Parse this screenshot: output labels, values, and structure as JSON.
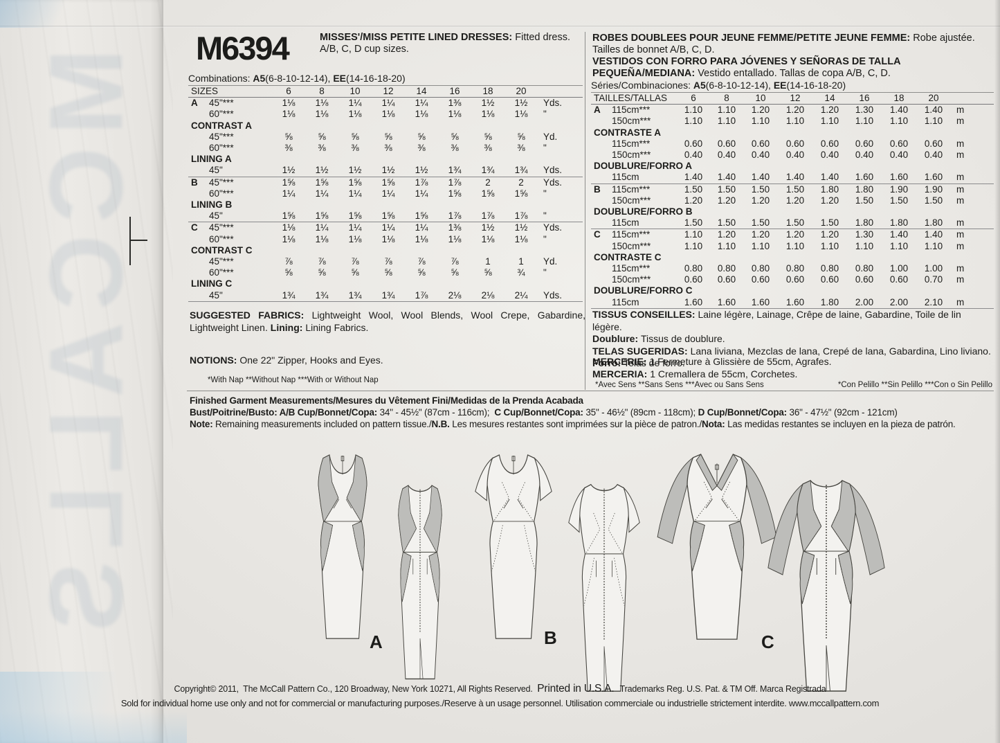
{
  "colors": {
    "paper": "#e9e7e3",
    "ink": "#1c1c1a",
    "contrast_gray": "#bdbdba",
    "rule_gray": "#8d8d8b",
    "ghost_blue": "#7d96af"
  },
  "watermark_text": "MCCALLS",
  "header": {
    "pattern_number": "M6394",
    "title_en": [
      {
        "t": "MISSES'/MISS PETITE LINED DRESSES: ",
        "b": 1
      },
      {
        "t": "Fitted dress. A/B, C, D cup sizes."
      }
    ],
    "title_fr": [
      {
        "t": "ROBES DOUBLEES POUR JEUNE FEMME/PETITE JEUNE FEMME: ",
        "b": 1
      },
      {
        "t": "Robe ajustée. Tailles de bonnet A/B, C, D."
      }
    ],
    "title_es": [
      {
        "t": "VESTIDOS CON FORRO PARA JÓVENES Y SEÑORAS DE TALLA PEQUEÑA/MEDIANA: ",
        "b": 1
      },
      {
        "t": "Vestido entallado. Tallas de copa A/B, C, D."
      }
    ]
  },
  "combinations_en": [
    {
      "t": "Combinations: "
    },
    {
      "t": "A5",
      "b": 1
    },
    {
      "t": "(6-8-10-12-14), "
    },
    {
      "t": "EE",
      "b": 1
    },
    {
      "t": "(14-16-18-20)"
    }
  ],
  "combinations_intl": [
    {
      "t": "Séries/Combinaciones: "
    },
    {
      "t": "A5",
      "b": 1
    },
    {
      "t": "(6-8-10-12-14), "
    },
    {
      "t": "EE",
      "b": 1
    },
    {
      "t": "(14-16-18-20)"
    }
  ],
  "left_table": {
    "cols": [
      121,
      48,
      48,
      48,
      48,
      48,
      48,
      48,
      48,
      65
    ],
    "header": [
      "SIZES",
      "6",
      "8",
      "10",
      "12",
      "14",
      "16",
      "18",
      "20",
      ""
    ],
    "rows": [
      {
        "ltr": "A",
        "l": "45\"***",
        "v": [
          "1⅛",
          "1⅛",
          "1¼",
          "1¼",
          "1¼",
          "1⅜",
          "1½",
          "1½"
        ],
        "u": "Yds."
      },
      {
        "l": "60\"***",
        "v": [
          "1⅛",
          "1⅛",
          "1⅛",
          "1⅛",
          "1⅛",
          "1⅛",
          "1⅛",
          "1⅛"
        ],
        "u": "\""
      },
      {
        "sec": "CONTRAST A"
      },
      {
        "l": "45\"***",
        "v": [
          "⅝",
          "⅝",
          "⅝",
          "⅝",
          "⅝",
          "⅝",
          "⅝",
          "⅝"
        ],
        "u": "Yd."
      },
      {
        "l": "60\"***",
        "v": [
          "⅜",
          "⅜",
          "⅜",
          "⅜",
          "⅜",
          "⅜",
          "⅜",
          "⅜"
        ],
        "u": "\""
      },
      {
        "sec": "LINING A"
      },
      {
        "l": "45\"",
        "v": [
          "1½",
          "1½",
          "1½",
          "1½",
          "1½",
          "1¾",
          "1¾",
          "1¾"
        ],
        "u": "Yds."
      },
      {
        "ltr": "B",
        "l": "45\"***",
        "v": [
          "1⅝",
          "1⅝",
          "1⅝",
          "1⅝",
          "1⅞",
          "1⅞",
          "2",
          "2"
        ],
        "u": "Yds.",
        "ra": 1
      },
      {
        "l": "60\"***",
        "v": [
          "1¼",
          "1¼",
          "1¼",
          "1¼",
          "1¼",
          "1⅝",
          "1⅝",
          "1⅝"
        ],
        "u": "\""
      },
      {
        "sec": "LINING B"
      },
      {
        "l": "45\"",
        "v": [
          "1⅝",
          "1⅝",
          "1⅝",
          "1⅝",
          "1⅝",
          "1⅞",
          "1⅞",
          "1⅞"
        ],
        "u": "\""
      },
      {
        "ltr": "C",
        "l": "45\"***",
        "v": [
          "1⅛",
          "1¼",
          "1¼",
          "1¼",
          "1¼",
          "1⅜",
          "1½",
          "1½"
        ],
        "u": "Yds.",
        "ra": 1
      },
      {
        "l": "60\"***",
        "v": [
          "1⅛",
          "1⅛",
          "1⅛",
          "1⅛",
          "1⅛",
          "1⅛",
          "1⅛",
          "1⅛"
        ],
        "u": "\""
      },
      {
        "sec": "CONTRAST C"
      },
      {
        "l": "45\"***",
        "v": [
          "⅞",
          "⅞",
          "⅞",
          "⅞",
          "⅞",
          "⅞",
          "1",
          "1"
        ],
        "u": "Yd."
      },
      {
        "l": "60\"***",
        "v": [
          "⅝",
          "⅝",
          "⅝",
          "⅝",
          "⅝",
          "⅝",
          "⅝",
          "¾"
        ],
        "u": "\""
      },
      {
        "sec": "LINING C"
      },
      {
        "l": "45\"",
        "v": [
          "1¾",
          "1¾",
          "1¾",
          "1¾",
          "1⅞",
          "2⅛",
          "2⅛",
          "2¼"
        ],
        "u": "Yds.",
        "rb": 1
      }
    ]
  },
  "right_table": {
    "cols": [
      124,
      48,
      48,
      50,
      50,
      50,
      50,
      50,
      50,
      62
    ],
    "header": [
      "TAILLES/TALLAS",
      "6",
      "8",
      "10",
      "12",
      "14",
      "16",
      "18",
      "20",
      ""
    ],
    "rows": [
      {
        "ltr": "A",
        "l": "115cm***",
        "v": [
          "1.10",
          "1.10",
          "1.20",
          "1.20",
          "1.20",
          "1.30",
          "1.40",
          "1.40"
        ],
        "u": "m"
      },
      {
        "l": "150cm***",
        "v": [
          "1.10",
          "1.10",
          "1.10",
          "1.10",
          "1.10",
          "1.10",
          "1.10",
          "1.10"
        ],
        "u": "m"
      },
      {
        "sec": "CONTRASTE A"
      },
      {
        "l": "115cm***",
        "v": [
          "0.60",
          "0.60",
          "0.60",
          "0.60",
          "0.60",
          "0.60",
          "0.60",
          "0.60"
        ],
        "u": "m"
      },
      {
        "l": "150cm***",
        "v": [
          "0.40",
          "0.40",
          "0.40",
          "0.40",
          "0.40",
          "0.40",
          "0.40",
          "0.40"
        ],
        "u": "m"
      },
      {
        "sec": "DOUBLURE/FORRO A"
      },
      {
        "l": "115cm",
        "v": [
          "1.40",
          "1.40",
          "1.40",
          "1.40",
          "1.40",
          "1.60",
          "1.60",
          "1.60"
        ],
        "u": "m"
      },
      {
        "ltr": "B",
        "l": "115cm***",
        "v": [
          "1.50",
          "1.50",
          "1.50",
          "1.50",
          "1.80",
          "1.80",
          "1.90",
          "1.90"
        ],
        "u": "m",
        "ra": 1
      },
      {
        "l": "150cm***",
        "v": [
          "1.20",
          "1.20",
          "1.20",
          "1.20",
          "1.20",
          "1.50",
          "1.50",
          "1.50"
        ],
        "u": "m"
      },
      {
        "sec": "DOUBLURE/FORRO B"
      },
      {
        "l": "115cm",
        "v": [
          "1.50",
          "1.50",
          "1.50",
          "1.50",
          "1.50",
          "1.80",
          "1.80",
          "1.80"
        ],
        "u": "m"
      },
      {
        "ltr": "C",
        "l": "115cm***",
        "v": [
          "1.10",
          "1.20",
          "1.20",
          "1.20",
          "1.20",
          "1.30",
          "1.40",
          "1.40"
        ],
        "u": "m",
        "ra": 1
      },
      {
        "l": "150cm***",
        "v": [
          "1.10",
          "1.10",
          "1.10",
          "1.10",
          "1.10",
          "1.10",
          "1.10",
          "1.10"
        ],
        "u": "m"
      },
      {
        "sec": "CONTRASTE C"
      },
      {
        "l": "115cm***",
        "v": [
          "0.80",
          "0.80",
          "0.80",
          "0.80",
          "0.80",
          "0.80",
          "1.00",
          "1.00"
        ],
        "u": "m"
      },
      {
        "l": "150cm***",
        "v": [
          "0.60",
          "0.60",
          "0.60",
          "0.60",
          "0.60",
          "0.60",
          "0.60",
          "0.70"
        ],
        "u": "m"
      },
      {
        "sec": "DOUBLURE/FORRO C"
      },
      {
        "l": "115cm",
        "v": [
          "1.60",
          "1.60",
          "1.60",
          "1.60",
          "1.80",
          "2.00",
          "2.00",
          "2.10"
        ],
        "u": "m",
        "rb": 1
      }
    ]
  },
  "fabrics_en": [
    {
      "t": "SUGGESTED FABRICS: ",
      "b": 1
    },
    {
      "t": "Lightweight Wool, Wool Blends, Wool Crepe, Gabardine, Lightweight Linen. "
    },
    {
      "t": "Lining: ",
      "b": 1
    },
    {
      "t": "Lining Fabrics."
    }
  ],
  "notions_en": [
    {
      "t": "NOTIONS: ",
      "b": 1
    },
    {
      "t": "One 22\" Zipper, Hooks and Eyes."
    }
  ],
  "nap_note_en": "*With Nap **Without Nap ***With or Without Nap",
  "tissus_fr": [
    {
      "t": "TISSUS CONSEILLES: ",
      "b": 1
    },
    {
      "t": "Laine légère, Lainage, Crêpe de laine, Gabardine, Toile de lin légère."
    }
  ],
  "doublure_fr": [
    {
      "t": "Doublure: ",
      "b": 1
    },
    {
      "t": "Tissus de doublure."
    }
  ],
  "telas_es": [
    {
      "t": "TELAS SUGERIDAS: ",
      "b": 1
    },
    {
      "t": "Lana liviana, Mezclas de lana, Crepé de lana, Gabardina, Lino liviano."
    }
  ],
  "forro_es": [
    {
      "t": "Forro: ",
      "b": 1
    },
    {
      "t": "Telas de forro."
    }
  ],
  "mercerie_fr": [
    {
      "t": "MERCERIE: ",
      "b": 1
    },
    {
      "t": "1 Fermeture à Glissière de 55cm, Agrafes."
    }
  ],
  "merceria_es": [
    {
      "t": "MERCERIA: ",
      "b": 1
    },
    {
      "t": "1 Cremallera de 55cm, Corchetes."
    }
  ],
  "nap_note_fr": "*Avec Sens **Sans Sens ***Avec ou Sans Sens",
  "nap_note_es": "*Con Pelillo **Sin Pelillo ***Con o Sin Pelillo",
  "finished": {
    "title": "Finished Garment Measurements/Mesures du Vêtement Fini/Medidas de la Prenda Acabada",
    "bust": [
      {
        "t": "Bust/Poitrine/Busto: ",
        "b": 1
      },
      {
        "t": "A/B Cup/Bonnet/Copa: ",
        "b": 1
      },
      {
        "t": "34\" - 45½\" (87cm - 116cm);  "
      },
      {
        "t": "C Cup/Bonnet/Copa: ",
        "b": 1
      },
      {
        "t": "35\" - 46½\" (89cm - 118cm); "
      },
      {
        "t": "D Cup/Bonnet/Copa: ",
        "b": 1
      },
      {
        "t": "36\" - 47½\" (92cm - 121cm)"
      }
    ],
    "note": [
      {
        "t": "Note: ",
        "b": 1
      },
      {
        "t": "Remaining measurements included on pattern tissue./"
      },
      {
        "t": "N.B.",
        "b": 1
      },
      {
        "t": " Les mesures restantes sont imprimées sur la pièce de patron./"
      },
      {
        "t": "Nota: ",
        "b": 1
      },
      {
        "t": "Las medidas restantes se incluyen en la pieza de patrón."
      }
    ]
  },
  "views": [
    {
      "label": "A"
    },
    {
      "label": "B"
    },
    {
      "label": "C"
    }
  ],
  "copyright_line1": [
    {
      "t": "Copyright© 2011,  The McCall Pattern Co., 120 Broadway, New York 10271, All Rights Reserved.  "
    },
    {
      "t": "Printed in U.S.A.  ",
      "lg": 1
    },
    {
      "t": "Trademarks Reg. U.S. Pat. & TM Off. Marca Registrada"
    }
  ],
  "copyright_line2": "Sold for individual home use only and not for commercial or manufacturing purposes./Reserve à un usage personnel. Utilisation commerciale ou industrielle strictement interdite. www.mccallpattern.com"
}
